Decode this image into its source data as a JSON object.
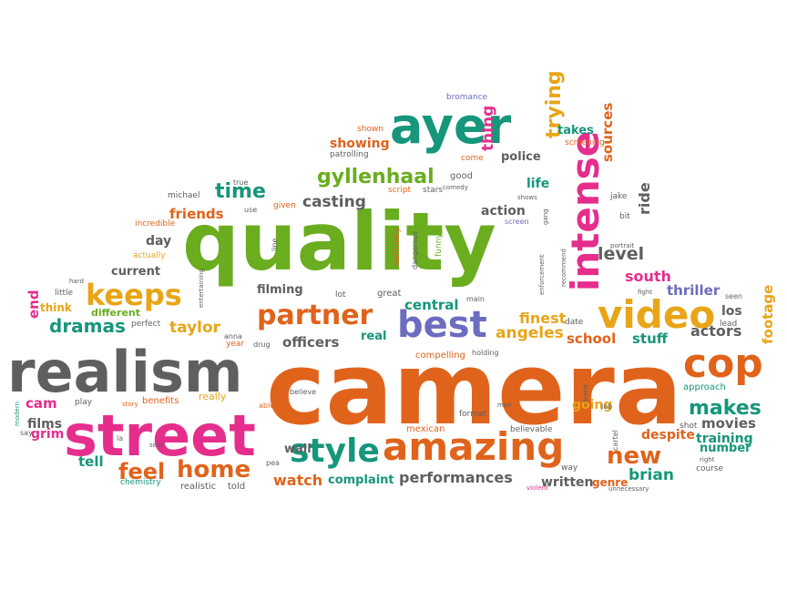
{
  "words": [
    {
      "text": "camera",
      "color": "#e0631c",
      "weight": 10
    },
    {
      "text": "quality",
      "color": "#6aad1f",
      "weight": 10
    },
    {
      "text": "realism",
      "color": "#5f5f5f",
      "weight": 9
    },
    {
      "text": "street",
      "color": "#e52e8c",
      "weight": 8
    },
    {
      "text": "ayer",
      "color": "#16967a",
      "weight": 8
    },
    {
      "text": "intense",
      "color": "#e52e8c",
      "weight": 7
    },
    {
      "text": "amazing",
      "color": "#e0631c",
      "weight": 7
    },
    {
      "text": "best",
      "color": "#6c6cc0",
      "weight": 6
    },
    {
      "text": "video",
      "color": "#e8a517",
      "weight": 6
    },
    {
      "text": "style",
      "color": "#16967a",
      "weight": 6
    },
    {
      "text": "cop",
      "color": "#e0631c",
      "weight": 6
    },
    {
      "text": "partner",
      "color": "#e0631c",
      "weight": 5
    },
    {
      "text": "keeps",
      "color": "#e8a517",
      "weight": 5
    },
    {
      "text": "gyllenhaal",
      "color": "#6aad1f",
      "weight": 5
    },
    {
      "text": "feel",
      "color": "#e0631c",
      "weight": 4
    },
    {
      "text": "home",
      "color": "#e0631c",
      "weight": 4
    },
    {
      "text": "new",
      "color": "#e0631c",
      "weight": 4
    },
    {
      "text": "trying",
      "color": "#e8a517",
      "weight": 4
    },
    {
      "text": "time",
      "color": "#16967a",
      "weight": 4
    },
    {
      "text": "dramas",
      "color": "#16967a",
      "weight": 4
    },
    {
      "text": "makes",
      "color": "#16967a",
      "weight": 4
    },
    {
      "text": "level",
      "color": "#5f5f5f",
      "weight": 3
    },
    {
      "text": "taylor",
      "color": "#e8a517",
      "weight": 3
    },
    {
      "text": "brian",
      "color": "#16967a",
      "weight": 3
    },
    {
      "text": "casting",
      "color": "#5f5f5f",
      "weight": 3
    },
    {
      "text": "friends",
      "color": "#e0631c",
      "weight": 3
    },
    {
      "text": "angeles",
      "color": "#e8a517",
      "weight": 3
    },
    {
      "text": "actors",
      "color": "#5f5f5f",
      "weight": 3
    },
    {
      "text": "south",
      "color": "#e52e8c",
      "weight": 3
    },
    {
      "text": "watch",
      "color": "#e0631c",
      "weight": 3
    },
    {
      "text": "performances",
      "color": "#5f5f5f",
      "weight": 3
    },
    {
      "text": "officers",
      "color": "#5f5f5f",
      "weight": 3
    },
    {
      "text": "central",
      "color": "#16967a",
      "weight": 3
    },
    {
      "text": "school",
      "color": "#e0631c",
      "weight": 3
    },
    {
      "text": "finest",
      "color": "#e8a517",
      "weight": 3
    },
    {
      "text": "stuff",
      "color": "#16967a",
      "weight": 3
    },
    {
      "text": "movies",
      "color": "#5f5f5f",
      "weight": 3
    },
    {
      "text": "thriller",
      "color": "#6c6cc0",
      "weight": 3
    },
    {
      "text": "thing",
      "color": "#e52e8c",
      "weight": 3
    },
    {
      "text": "sources",
      "color": "#e0631c",
      "weight": 3
    },
    {
      "text": "ride",
      "color": "#5f5f5f",
      "weight": 3
    },
    {
      "text": "footage",
      "color": "#e8a517",
      "weight": 2
    },
    {
      "text": "end",
      "color": "#e52e8c",
      "weight": 2
    },
    {
      "text": "cam",
      "color": "#e52e8c",
      "weight": 2
    },
    {
      "text": "films",
      "color": "#5f5f5f",
      "weight": 2
    },
    {
      "text": "grim",
      "color": "#e52e8c",
      "weight": 2
    },
    {
      "text": "tell",
      "color": "#16967a",
      "weight": 2
    },
    {
      "text": "day",
      "color": "#5f5f5f",
      "weight": 2
    },
    {
      "text": "current",
      "color": "#5f5f5f",
      "weight": 2
    },
    {
      "text": "action",
      "color": "#5f5f5f",
      "weight": 2
    },
    {
      "text": "life",
      "color": "#16967a",
      "weight": 2
    },
    {
      "text": "police",
      "color": "#5f5f5f",
      "weight": 2
    },
    {
      "text": "showing",
      "color": "#e0631c",
      "weight": 2
    },
    {
      "text": "takes",
      "color": "#16967a",
      "weight": 2
    },
    {
      "text": "filming",
      "color": "#5f5f5f",
      "weight": 2
    },
    {
      "text": "real",
      "color": "#16967a",
      "weight": 2
    },
    {
      "text": "going",
      "color": "#e8a517",
      "weight": 2
    },
    {
      "text": "training",
      "color": "#16967a",
      "weight": 2
    },
    {
      "text": "number",
      "color": "#16967a",
      "weight": 2
    },
    {
      "text": "los",
      "color": "#5f5f5f",
      "weight": 2
    },
    {
      "text": "despite",
      "color": "#e0631c",
      "weight": 2
    },
    {
      "text": "complaint",
      "color": "#16967a",
      "weight": 2
    },
    {
      "text": "written",
      "color": "#5f5f5f",
      "weight": 2
    },
    {
      "text": "genre",
      "color": "#e0631c",
      "weight": 2
    },
    {
      "text": "wall",
      "color": "#5f5f5f",
      "weight": 2
    },
    {
      "text": "think",
      "color": "#e8a517",
      "weight": 2
    },
    {
      "text": "different",
      "color": "#6aad1f",
      "weight": 2
    },
    {
      "text": "little",
      "color": "#5f5f5f",
      "weight": 1
    },
    {
      "text": "perfect",
      "color": "#5f5f5f",
      "weight": 1
    },
    {
      "text": "really",
      "color": "#e8a517",
      "weight": 1
    },
    {
      "text": "benefits",
      "color": "#e0631c",
      "weight": 1
    },
    {
      "text": "play",
      "color": "#5f5f5f",
      "weight": 1
    },
    {
      "text": "say",
      "color": "#5f5f5f",
      "weight": 1
    },
    {
      "text": "chemistry",
      "color": "#16967a",
      "weight": 1
    },
    {
      "text": "realistic",
      "color": "#5f5f5f",
      "weight": 1
    },
    {
      "text": "told",
      "color": "#5f5f5f",
      "weight": 1
    },
    {
      "text": "lot",
      "color": "#5f5f5f",
      "weight": 1
    },
    {
      "text": "great",
      "color": "#5f5f5f",
      "weight": 1
    },
    {
      "text": "drug",
      "color": "#5f5f5f",
      "weight": 1
    },
    {
      "text": "able",
      "color": "#e0631c",
      "weight": 1
    },
    {
      "text": "mexican",
      "color": "#e0631c",
      "weight": 1
    },
    {
      "text": "format",
      "color": "#5f5f5f",
      "weight": 1
    },
    {
      "text": "compelling",
      "color": "#e0631c",
      "weight": 1
    },
    {
      "text": "believe",
      "color": "#5f5f5f",
      "weight": 1
    },
    {
      "text": "believable",
      "color": "#5f5f5f",
      "weight": 1
    },
    {
      "text": "approach",
      "color": "#16967a",
      "weight": 1
    },
    {
      "text": "course",
      "color": "#5f5f5f",
      "weight": 1
    },
    {
      "text": "lead",
      "color": "#5f5f5f",
      "weight": 1
    },
    {
      "text": "way",
      "color": "#5f5f5f",
      "weight": 1
    },
    {
      "text": "shot",
      "color": "#5f5f5f",
      "weight": 1
    },
    {
      "text": "date",
      "color": "#5f5f5f",
      "weight": 1
    },
    {
      "text": "year",
      "color": "#e0631c",
      "weight": 1
    },
    {
      "text": "anna",
      "color": "#5f5f5f",
      "weight": 1
    },
    {
      "text": "michael",
      "color": "#5f5f5f",
      "weight": 1
    },
    {
      "text": "true",
      "color": "#5f5f5f",
      "weight": 1
    },
    {
      "text": "use",
      "color": "#5f5f5f",
      "weight": 1
    },
    {
      "text": "given",
      "color": "#e0631c",
      "weight": 1
    },
    {
      "text": "incredible",
      "color": "#e0631c",
      "weight": 1
    },
    {
      "text": "actually",
      "color": "#e8a517",
      "weight": 1
    },
    {
      "text": "script",
      "color": "#e0631c",
      "weight": 1
    },
    {
      "text": "stars",
      "color": "#5f5f5f",
      "weight": 1
    },
    {
      "text": "good",
      "color": "#5f5f5f",
      "weight": 1
    },
    {
      "text": "comedy",
      "color": "#5f5f5f",
      "weight": 1
    },
    {
      "text": "come",
      "color": "#e0631c",
      "weight": 1
    },
    {
      "text": "patrolling",
      "color": "#5f5f5f",
      "weight": 1
    },
    {
      "text": "shown",
      "color": "#e0631c",
      "weight": 1
    },
    {
      "text": "screening",
      "color": "#e0631c",
      "weight": 1
    },
    {
      "text": "bromance",
      "color": "#6c6cc0",
      "weight": 1
    },
    {
      "text": "jake",
      "color": "#5f5f5f",
      "weight": 1
    },
    {
      "text": "bit",
      "color": "#5f5f5f",
      "weight": 1
    },
    {
      "text": "shows",
      "color": "#5f5f5f",
      "weight": 1
    },
    {
      "text": "screen",
      "color": "#6c6cc0",
      "weight": 1
    },
    {
      "text": "funny",
      "color": "#6aad1f",
      "weight": 1
    },
    {
      "text": "dangerous",
      "color": "#5f5f5f",
      "weight": 1
    },
    {
      "text": "definitely",
      "color": "#e0631c",
      "weight": 1
    },
    {
      "text": "main",
      "color": "#5f5f5f",
      "weight": 1
    },
    {
      "text": "holding",
      "color": "#5f5f5f",
      "weight": 1
    },
    {
      "text": "cartel",
      "color": "#5f5f5f",
      "weight": 1
    },
    {
      "text": "unnecessary",
      "color": "#5f5f5f",
      "weight": 1
    },
    {
      "text": "violent",
      "color": "#e52e8c",
      "weight": 1
    },
    {
      "text": "modern",
      "color": "#16967a",
      "weight": 1
    },
    {
      "text": "seat",
      "color": "#5f5f5f",
      "weight": 1
    },
    {
      "text": "pea",
      "color": "#5f5f5f",
      "weight": 1
    },
    {
      "text": "hard",
      "color": "#5f5f5f",
      "weight": 1
    },
    {
      "text": "entertaining",
      "color": "#5f5f5f",
      "weight": 1
    },
    {
      "text": "line",
      "color": "#5f5f5f",
      "weight": 1
    },
    {
      "text": "recommend",
      "color": "#5f5f5f",
      "weight": 1
    },
    {
      "text": "enforcement",
      "color": "#5f5f5f",
      "weight": 1
    },
    {
      "text": "portrait",
      "color": "#5f5f5f",
      "weight": 1
    },
    {
      "text": "fight",
      "color": "#5f5f5f",
      "weight": 1
    },
    {
      "text": "seen",
      "color": "#5f5f5f",
      "weight": 1
    },
    {
      "text": "job",
      "color": "#5f5f5f",
      "weight": 1
    },
    {
      "text": "stand",
      "color": "#5f5f5f",
      "weight": 1
    },
    {
      "text": "men",
      "color": "#5f5f5f",
      "weight": 1
    },
    {
      "text": "story",
      "color": "#e0631c",
      "weight": 1
    },
    {
      "text": "la",
      "color": "#5f5f5f",
      "weight": 1
    },
    {
      "text": "right",
      "color": "#5f5f5f",
      "weight": 1
    },
    {
      "text": "gang",
      "color": "#5f5f5f",
      "weight": 1
    }
  ]
}
